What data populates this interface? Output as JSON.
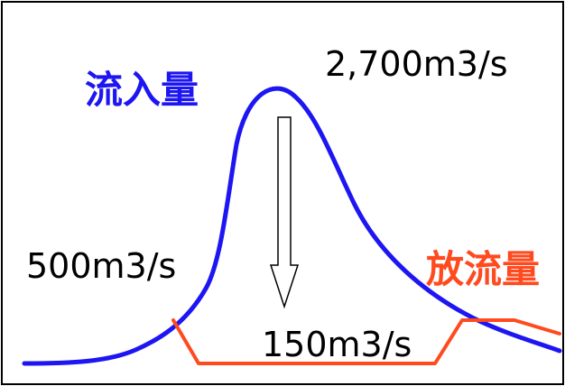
{
  "labels": {
    "inflow_title": "流入量",
    "peak_inflow": "2,700m3/s",
    "base_inflow": "500m3/s",
    "outflow_title": "放流量",
    "constant_outflow": "150m3/s"
  },
  "colors": {
    "inflow": "#1d16f2",
    "outflow": "#ff4a1f",
    "text": "#000000",
    "border": "#000000",
    "background": "#ffffff"
  }
}
